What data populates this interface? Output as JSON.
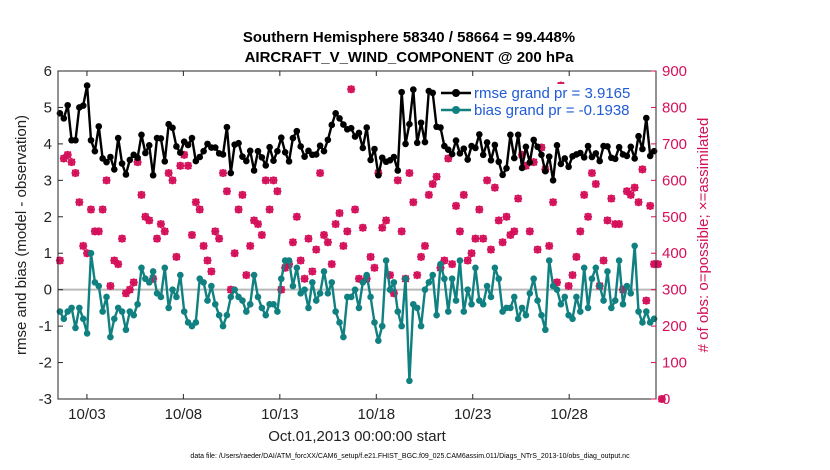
{
  "chart_data": {
    "type": "line",
    "title": [
      "Southern Hemisphere 58340 / 58664 = 99.448%",
      "AIRCRAFT_V_WIND_COMPONENT @ 200 hPa"
    ],
    "xlabel": "Oct.01,2013 00:00:00 start",
    "ylabel": "rmse and bias (model - observation)",
    "y2label": "# of obs: o=possible; ×=assimilated",
    "footnote": "data file: /Users/raeder/DAI/ATM_forcXX/CAM6_setup/f.e21.FHIST_BGC.f09_025.CAM6assim.011/Diags_NTrS_2013-10/obs_diag_output.nc",
    "xlim": [
      1.5,
      32.5
    ],
    "ylim": [
      -3,
      6
    ],
    "y2lim": [
      0,
      900
    ],
    "x_ticks": [
      3,
      8,
      13,
      18,
      23,
      28
    ],
    "x_tick_labels": [
      "10/03",
      "10/08",
      "10/13",
      "10/18",
      "10/23",
      "10/28"
    ],
    "y_ticks": [
      "-3",
      "-2",
      "-1",
      "0",
      "1",
      "2",
      "3",
      "4",
      "5",
      "6"
    ],
    "y2_ticks": [
      "0",
      "100",
      "200",
      "300",
      "400",
      "500",
      "600",
      "700",
      "800",
      "900"
    ],
    "grid": false,
    "legend_position": "top-right",
    "colors": {
      "rmse": "#000000",
      "bias": "#108080",
      "obs": "#d4105a",
      "zero": "#b8b8b8",
      "legend_text": "#1f5bd6"
    },
    "series": [
      {
        "name": "rmse grand pr = 3.9165",
        "values": [
          4.84,
          4.7,
          5.06,
          4.1,
          4.1,
          5.0,
          5.05,
          5.6,
          4.1,
          3.8,
          4.48,
          3.6,
          3.5,
          3.64,
          3.3,
          4.16,
          3.46,
          3.16,
          3.56,
          3.7,
          3.62,
          4.25,
          3.75,
          3.96,
          3.14,
          4.16,
          4.15,
          3.52,
          4.54,
          4.44,
          3.93,
          3.76,
          4.06,
          3.97,
          4.16,
          3.53,
          3.64,
          3.8,
          4.0,
          3.9,
          3.9,
          3.74,
          3.71,
          4.46,
          3.2,
          3.98,
          4.02,
          3.65,
          3.53,
          3.81,
          3.27,
          3.8,
          3.63,
          3.41,
          3.91,
          3.54,
          3.8,
          4.17,
          3.77,
          3.52,
          4.16,
          4.35,
          3.93,
          3.65,
          3.81,
          3.7,
          3.71,
          3.95,
          3.8,
          4.11,
          4.52,
          4.84,
          4.7,
          4.53,
          4.4,
          4.43,
          4.2,
          4.3,
          3.89,
          4.45,
          3.56,
          3.86,
          3.14,
          3.62,
          3.51,
          3.55,
          3.64,
          3.27,
          5.42,
          4.0,
          4.54,
          5.49,
          4.03,
          4.58,
          4.05,
          5.45,
          5.4,
          4.47,
          4.45,
          3.94,
          3.84,
          3.72,
          4.09,
          3.74,
          3.87,
          3.57,
          3.94,
          3.89,
          4.26,
          3.7,
          4.04,
          3.55,
          3.97,
          3.51,
          3.15,
          3.33,
          4.25,
          3.61,
          4.25,
          3.34,
          3.92,
          3.49,
          4.11,
          3.92,
          3.7,
          3.25,
          3.65,
          3.0,
          3.96,
          3.45,
          3.6,
          3.37,
          3.66,
          3.71,
          3.75,
          3.63,
          3.94,
          3.64,
          3.74,
          3.53,
          3.94,
          3.93,
          3.62,
          3.59,
          3.91,
          3.71,
          3.67,
          3.92,
          3.6,
          4.21,
          3.86,
          4.71,
          3.67,
          3.8
        ]
      },
      {
        "name": "bias grand pr = -0.1938",
        "values": [
          -0.6,
          -0.8,
          -0.6,
          -0.5,
          -1.05,
          -0.5,
          -0.8,
          -1.2,
          1.0,
          0.2,
          0.1,
          -0.6,
          -0.2,
          -1.3,
          -0.8,
          -0.5,
          -0.6,
          -1.1,
          -0.6,
          -0.7,
          -0.4,
          0.6,
          0.3,
          0.2,
          0.5,
          -0.1,
          -0.2,
          0.6,
          -0.5,
          0.0,
          -0.2,
          0.4,
          -0.6,
          -0.9,
          -1.0,
          -0.9,
          0.3,
          0.2,
          -0.3,
          0.1,
          -0.4,
          -0.7,
          -1.0,
          -0.7,
          -0.2,
          0.0,
          -0.2,
          -0.3,
          -0.6,
          -0.4,
          0.4,
          -0.2,
          -0.5,
          -0.7,
          -0.4,
          -0.4,
          -0.6,
          0.3,
          0.8,
          0.8,
          0.1,
          0.6,
          -0.1,
          0.0,
          -0.5,
          0.2,
          -0.3,
          -0.1,
          0.5,
          -0.1,
          0.2,
          -0.6,
          -0.9,
          -1.3,
          -0.2,
          -0.2,
          0.0,
          -0.5,
          0.2,
          0.4,
          -0.2,
          -0.9,
          -1.4,
          -1.0,
          0.8,
          0.0,
          0.2,
          -0.6,
          -1.0,
          0.3,
          -2.5,
          -0.4,
          -0.5,
          -1.0,
          0.0,
          0.2,
          0.4,
          -0.7,
          0.7,
          0.3,
          -0.6,
          0.3,
          -0.3,
          0.8,
          -0.6,
          0.0,
          -0.4,
          0.6,
          -0.3,
          -0.4,
          0.1,
          -0.2,
          0.6,
          0.3,
          -0.6,
          -0.5,
          -0.5,
          -0.2,
          -0.8,
          -0.5,
          -0.7,
          -0.1,
          0.3,
          -0.3,
          -0.7,
          -1.1,
          0.8,
          0.1,
          0.0,
          -0.4,
          -0.2,
          -0.7,
          -0.8,
          -0.2,
          -0.6,
          0.6,
          -0.5,
          0.3,
          0.6,
          0.1,
          -0.3,
          0.5,
          -0.5,
          -0.3,
          0.8,
          -0.4,
          0.1,
          -0.1,
          1.2,
          -0.6,
          -0.9,
          -0.6,
          -0.9,
          -0.8
        ]
      },
      {
        "name": "obs possible (right axis)",
        "values": [
          380,
          660,
          670,
          650,
          620,
          540,
          420,
          400,
          520,
          460,
          460,
          520,
          600,
          310,
          380,
          370,
          440,
          290,
          300,
          320,
          650,
          560,
          500,
          490,
          330,
          440,
          480,
          460,
          620,
          600,
          390,
          640,
          670,
          640,
          450,
          540,
          520,
          420,
          380,
          350,
          460,
          440,
          620,
          570,
          300,
          400,
          520,
          560,
          340,
          420,
          490,
          480,
          450,
          600,
          520,
          600,
          570,
          300,
          360,
          370,
          430,
          500,
          380,
          330,
          440,
          350,
          410,
          620,
          450,
          430,
          370,
          480,
          510,
          420,
          460,
          850,
          520,
          330,
          470,
          330,
          390,
          360,
          620,
          470,
          490,
          340,
          290,
          600,
          460,
          330,
          620,
          540,
          340,
          390,
          420,
          560,
          590,
          610,
          360,
          380,
          660,
          370,
          530,
          460,
          560,
          380,
          400,
          440,
          520,
          440,
          600,
          410,
          580,
          490,
          430,
          500,
          450,
          460,
          550,
          670,
          640,
          460,
          650,
          410,
          690,
          630,
          420,
          540,
          320,
          860,
          850,
          310,
          340,
          390,
          460,
          560,
          500,
          620,
          590,
          310,
          380,
          490,
          550,
          480,
          480,
          300,
          570,
          560,
          580,
          540,
          630,
          270,
          530,
          370,
          370,
          0
        ]
      },
      {
        "name": "obs assimilated (right axis)",
        "values": [
          380,
          660,
          670,
          650,
          620,
          540,
          420,
          400,
          520,
          460,
          460,
          520,
          600,
          310,
          380,
          370,
          440,
          290,
          300,
          320,
          650,
          560,
          500,
          490,
          330,
          440,
          480,
          460,
          620,
          600,
          390,
          640,
          670,
          640,
          450,
          540,
          520,
          420,
          380,
          350,
          460,
          440,
          620,
          570,
          300,
          400,
          520,
          560,
          340,
          420,
          490,
          480,
          450,
          600,
          520,
          600,
          570,
          300,
          360,
          370,
          430,
          500,
          380,
          330,
          440,
          350,
          410,
          620,
          450,
          430,
          370,
          480,
          510,
          420,
          460,
          850,
          520,
          330,
          470,
          330,
          390,
          360,
          620,
          470,
          490,
          340,
          290,
          600,
          460,
          330,
          620,
          540,
          340,
          390,
          420,
          560,
          590,
          610,
          360,
          380,
          660,
          370,
          530,
          460,
          560,
          380,
          400,
          440,
          520,
          440,
          600,
          410,
          580,
          490,
          430,
          500,
          450,
          460,
          550,
          670,
          640,
          460,
          650,
          410,
          690,
          630,
          420,
          540,
          320,
          860,
          850,
          310,
          340,
          390,
          460,
          560,
          500,
          620,
          590,
          310,
          380,
          490,
          550,
          480,
          480,
          300,
          570,
          560,
          580,
          540,
          630,
          270,
          530,
          370,
          370,
          0
        ]
      }
    ]
  }
}
